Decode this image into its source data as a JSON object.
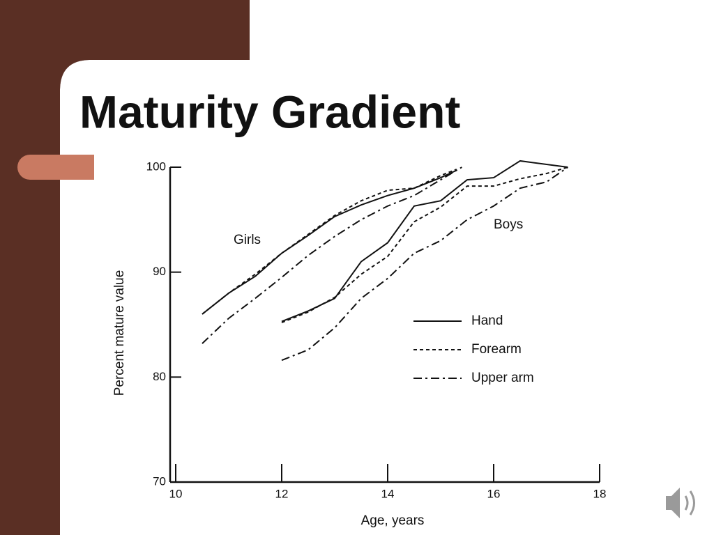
{
  "slide": {
    "title": "Maturity Gradient"
  },
  "chart_data": {
    "type": "line",
    "xlabel": "Age, years",
    "ylabel": "Percent mature value",
    "xlim": [
      10,
      18
    ],
    "xticks": [
      10,
      12,
      14,
      16,
      18
    ],
    "ylim": [
      70,
      100
    ],
    "yticks": [
      70,
      80,
      90,
      100
    ],
    "color": "#111111",
    "groups": [
      {
        "label": "Girls",
        "series": [
          {
            "name": "Hand",
            "style": "solid",
            "x": [
              10.5,
              11,
              11.5,
              12,
              12.5,
              13,
              13.5,
              14,
              14.5,
              15,
              15.3
            ],
            "values": [
              86,
              88,
              89.6,
              91.8,
              93.5,
              95.3,
              96.4,
              97.3,
              98,
              99,
              99.7
            ]
          },
          {
            "name": "Forearm",
            "style": "dashed",
            "x": [
              10.5,
              11,
              11.5,
              12,
              12.5,
              13,
              13.5,
              14,
              14.5,
              15,
              15.3
            ],
            "values": [
              86,
              88,
              89.8,
              91.8,
              93.6,
              95.4,
              96.8,
              97.8,
              98,
              99.2,
              99.8
            ]
          },
          {
            "name": "Upper arm",
            "style": "dashdot",
            "x": [
              10.5,
              11,
              11.5,
              12,
              12.5,
              13,
              13.5,
              14,
              14.5,
              15,
              15.4
            ],
            "values": [
              83.2,
              85.6,
              87.5,
              89.5,
              91.6,
              93.4,
              95,
              96.3,
              97.3,
              98.8,
              100
            ]
          }
        ]
      },
      {
        "label": "Boys",
        "series": [
          {
            "name": "Hand",
            "style": "solid",
            "x": [
              12,
              12.5,
              13,
              13.5,
              14,
              14.5,
              15,
              15.5,
              16,
              16.5,
              17.4
            ],
            "values": [
              85.3,
              86.3,
              87.5,
              91,
              92.8,
              96.3,
              96.8,
              98.8,
              99,
              100.6,
              100
            ]
          },
          {
            "name": "Forearm",
            "style": "dashed",
            "x": [
              12,
              12.5,
              13,
              13.5,
              14,
              14.5,
              15,
              15.5,
              16,
              16.5,
              17,
              17.4
            ],
            "values": [
              85.2,
              86.2,
              87.6,
              89.8,
              91.5,
              94.8,
              96.2,
              98.2,
              98.2,
              98.9,
              99.4,
              100
            ]
          },
          {
            "name": "Upper arm",
            "style": "dashdot",
            "x": [
              12,
              12.5,
              13,
              13.5,
              14,
              14.5,
              15,
              15.5,
              16,
              16.5,
              17,
              17.4
            ],
            "values": [
              81.6,
              82.6,
              84.7,
              87.5,
              89.4,
              91.8,
              93,
              95,
              96.3,
              98,
              98.6,
              100
            ]
          }
        ]
      }
    ]
  }
}
